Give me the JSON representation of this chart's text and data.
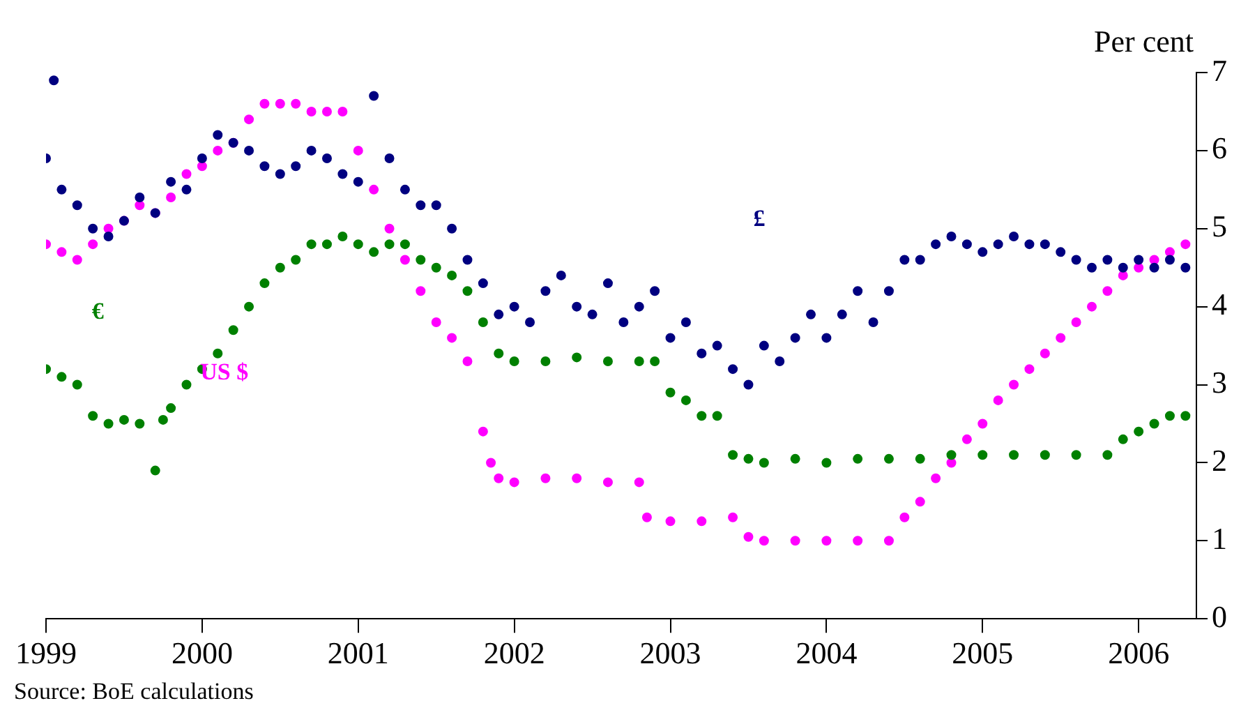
{
  "chart_data": {
    "type": "scatter",
    "ylabel": "Per cent",
    "annotations": [
      "Source: BoE calculations"
    ],
    "xlim": [
      1999,
      2006.37
    ],
    "xticks": [
      1999,
      2000,
      2001,
      2002,
      2003,
      2004,
      2005,
      2006
    ],
    "ylim": [
      0,
      7
    ],
    "yticks": [
      0,
      1,
      2,
      3,
      4,
      5,
      6,
      7
    ],
    "grid": false,
    "legend": false,
    "marker": "circle",
    "series": [
      {
        "name": "£",
        "color": "#000080",
        "x": [
          1999.0,
          1999.05,
          1999.1,
          1999.2,
          1999.3,
          1999.4,
          1999.5,
          1999.6,
          1999.7,
          1999.8,
          1999.9,
          2000.0,
          2000.1,
          2000.2,
          2000.3,
          2000.4,
          2000.5,
          2000.6,
          2000.7,
          2000.8,
          2000.9,
          2001.0,
          2001.1,
          2001.2,
          2001.3,
          2001.4,
          2001.5,
          2001.6,
          2001.7,
          2001.8,
          2001.9,
          2002.0,
          2002.1,
          2002.2,
          2002.3,
          2002.4,
          2002.5,
          2002.6,
          2002.7,
          2002.8,
          2002.9,
          2003.0,
          2003.1,
          2003.2,
          2003.3,
          2003.4,
          2003.5,
          2003.6,
          2003.7,
          2003.8,
          2003.9,
          2004.0,
          2004.1,
          2004.2,
          2004.3,
          2004.4,
          2004.5,
          2004.6,
          2004.7,
          2004.8,
          2004.9,
          2005.0,
          2005.1,
          2005.2,
          2005.3,
          2005.4,
          2005.5,
          2005.6,
          2005.7,
          2005.8,
          2005.9,
          2006.0,
          2006.1,
          2006.2,
          2006.3
        ],
        "values": [
          5.9,
          6.9,
          5.5,
          5.3,
          5.0,
          4.9,
          5.1,
          5.4,
          5.2,
          5.6,
          5.5,
          5.9,
          6.2,
          6.1,
          6.0,
          5.8,
          5.7,
          5.8,
          6.0,
          5.9,
          5.7,
          5.6,
          6.7,
          5.9,
          5.5,
          5.3,
          5.3,
          5.0,
          4.6,
          4.3,
          3.9,
          4.0,
          3.8,
          4.2,
          4.4,
          4.0,
          3.9,
          4.3,
          3.8,
          4.0,
          4.2,
          3.6,
          3.8,
          3.4,
          3.5,
          3.2,
          3.0,
          3.5,
          3.3,
          3.6,
          3.9,
          3.6,
          3.9,
          4.2,
          3.8,
          4.2,
          4.6,
          4.6,
          4.8,
          4.9,
          4.8,
          4.7,
          4.8,
          4.9,
          4.8,
          4.8,
          4.7,
          4.6,
          4.5,
          4.6,
          4.5,
          4.6,
          4.5,
          4.6,
          4.5
        ]
      },
      {
        "name": "€",
        "color": "#008000",
        "x": [
          1999.0,
          1999.1,
          1999.2,
          1999.3,
          1999.4,
          1999.5,
          1999.6,
          1999.7,
          1999.75,
          1999.8,
          1999.9,
          2000.0,
          2000.1,
          2000.2,
          2000.3,
          2000.4,
          2000.5,
          2000.6,
          2000.7,
          2000.8,
          2000.9,
          2001.0,
          2001.1,
          2001.2,
          2001.3,
          2001.4,
          2001.5,
          2001.6,
          2001.7,
          2001.8,
          2001.9,
          2002.0,
          2002.2,
          2002.4,
          2002.6,
          2002.8,
          2002.9,
          2003.0,
          2003.1,
          2003.2,
          2003.3,
          2003.4,
          2003.5,
          2003.6,
          2003.8,
          2004.0,
          2004.2,
          2004.4,
          2004.6,
          2004.8,
          2005.0,
          2005.2,
          2005.4,
          2005.6,
          2005.8,
          2005.9,
          2006.0,
          2006.1,
          2006.2,
          2006.3
        ],
        "values": [
          3.2,
          3.1,
          3.0,
          2.6,
          2.5,
          2.55,
          2.5,
          1.9,
          2.55,
          2.7,
          3.0,
          3.2,
          3.4,
          3.7,
          4.0,
          4.3,
          4.5,
          4.6,
          4.8,
          4.8,
          4.9,
          4.8,
          4.7,
          4.8,
          4.8,
          4.6,
          4.5,
          4.4,
          4.2,
          3.8,
          3.4,
          3.3,
          3.3,
          3.35,
          3.3,
          3.3,
          3.3,
          2.9,
          2.8,
          2.6,
          2.6,
          2.1,
          2.05,
          2.0,
          2.05,
          2.0,
          2.05,
          2.05,
          2.05,
          2.1,
          2.1,
          2.1,
          2.1,
          2.1,
          2.1,
          2.3,
          2.4,
          2.5,
          2.6,
          2.6
        ]
      },
      {
        "name": "US $",
        "color": "#ff00ff",
        "x": [
          1999.0,
          1999.1,
          1999.2,
          1999.3,
          1999.4,
          1999.5,
          1999.6,
          1999.7,
          1999.8,
          1999.9,
          2000.0,
          2000.1,
          2000.2,
          2000.3,
          2000.4,
          2000.5,
          2000.6,
          2000.7,
          2000.8,
          2000.9,
          2001.0,
          2001.1,
          2001.2,
          2001.3,
          2001.4,
          2001.5,
          2001.6,
          2001.7,
          2001.8,
          2001.85,
          2001.9,
          2002.0,
          2002.2,
          2002.4,
          2002.6,
          2002.8,
          2002.85,
          2003.0,
          2003.2,
          2003.4,
          2003.5,
          2003.6,
          2003.8,
          2004.0,
          2004.2,
          2004.4,
          2004.5,
          2004.6,
          2004.7,
          2004.8,
          2004.9,
          2005.0,
          2005.1,
          2005.2,
          2005.3,
          2005.4,
          2005.5,
          2005.6,
          2005.7,
          2005.8,
          2005.9,
          2006.0,
          2006.1,
          2006.2,
          2006.3
        ],
        "values": [
          4.8,
          4.7,
          4.6,
          4.8,
          5.0,
          5.1,
          5.3,
          5.2,
          5.4,
          5.7,
          5.8,
          6.0,
          6.1,
          6.4,
          6.6,
          6.6,
          6.6,
          6.5,
          6.5,
          6.5,
          6.0,
          5.5,
          5.0,
          4.6,
          4.2,
          3.8,
          3.6,
          3.3,
          2.4,
          2.0,
          1.8,
          1.75,
          1.8,
          1.8,
          1.75,
          1.75,
          1.3,
          1.25,
          1.25,
          1.3,
          1.05,
          1.0,
          1.0,
          1.0,
          1.0,
          1.0,
          1.3,
          1.5,
          1.8,
          2.0,
          2.3,
          2.5,
          2.8,
          3.0,
          3.2,
          3.4,
          3.6,
          3.8,
          4.0,
          4.2,
          4.4,
          4.5,
          4.6,
          4.7,
          4.8
        ]
      }
    ]
  }
}
